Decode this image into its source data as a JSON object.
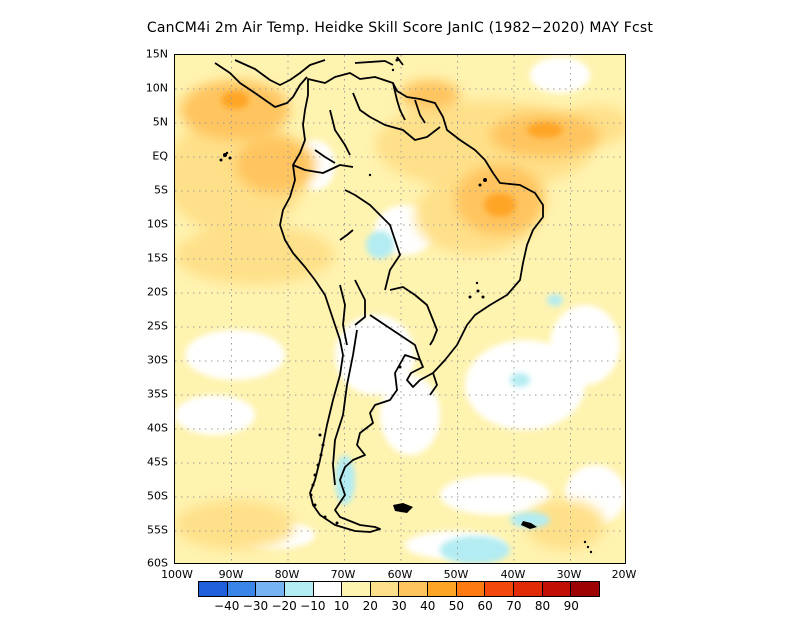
{
  "title": "CanCM4i  2m Air Temp. Heidke Skill Score JanIC (1982−2020) MAY Fcst",
  "lat_labels": [
    "15N",
    "10N",
    "5N",
    "EQ",
    "5S",
    "10S",
    "15S",
    "20S",
    "25S",
    "30S",
    "35S",
    "40S",
    "45S",
    "50S",
    "55S",
    "60S"
  ],
  "lon_labels": [
    "100W",
    "90W",
    "80W",
    "70W",
    "60W",
    "50W",
    "40W",
    "30W",
    "20W"
  ],
  "colorbar": {
    "colors": [
      "#1f5fd9",
      "#3a86e8",
      "#76b3f2",
      "#b3ecf2",
      "#ffffff",
      "#fff3b0",
      "#ffe08a",
      "#ffc45e",
      "#ffa526",
      "#ff7b12",
      "#f2480b",
      "#e02b06",
      "#c20f05",
      "#9e0303"
    ],
    "labels": [
      "−40",
      "−30",
      "−20",
      "−10",
      "10",
      "20",
      "30",
      "40",
      "50",
      "60",
      "70",
      "80",
      "90"
    ]
  },
  "map": {
    "region": "South America",
    "lat_range": [
      -60,
      15
    ],
    "lon_range": [
      -100,
      -20
    ],
    "grid": true,
    "skill_regions": [
      {
        "name": "pacific-north-warm",
        "level": 40,
        "color": "#ffc45e"
      },
      {
        "name": "pacific-north-hotspot",
        "level": 50,
        "color": "#ffa526"
      },
      {
        "name": "amazon-north-warm",
        "level": 40,
        "color": "#ffc45e"
      },
      {
        "name": "brazil-northeast-warm",
        "level": 50,
        "color": "#ffa526"
      },
      {
        "name": "bolivia-cold",
        "level": -10,
        "color": "#b3ecf2"
      },
      {
        "name": "patagonia-cold",
        "level": -10,
        "color": "#b3ecf2"
      },
      {
        "name": "southern-ocean-cold",
        "level": -10,
        "color": "#b3ecf2"
      }
    ]
  }
}
